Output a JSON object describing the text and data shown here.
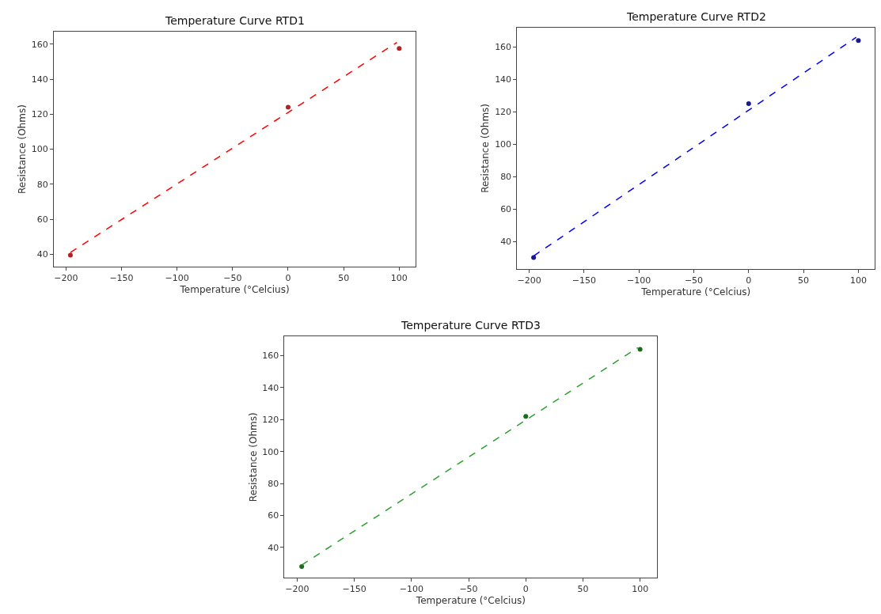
{
  "chart_data": [
    {
      "type": "scatter",
      "title": "Temperature Curve RTD1",
      "xlabel": "Temperature (°Celcius)",
      "ylabel": "Resistance (Ohms)",
      "xlim": [
        -211,
        115
      ],
      "xticks": [
        {
          "value": -200,
          "label": "−200"
        },
        {
          "value": -150,
          "label": "−150"
        },
        {
          "value": -100,
          "label": "−100"
        },
        {
          "value": -50,
          "label": "−50"
        },
        0,
        50,
        100
      ],
      "ylim": [
        33,
        167
      ],
      "yticks": [
        40,
        60,
        80,
        100,
        120,
        140,
        160
      ],
      "series": [
        {
          "marker": "circle",
          "color": "#b22222",
          "x": [
            -196,
            0,
            100
          ],
          "values": [
            39.5,
            124,
            157.5
          ]
        },
        {
          "type": "line",
          "line_style": "dashed",
          "marker": "none",
          "color": "#ff0000",
          "x": [
            -196,
            98
          ],
          "values": [
            41,
            161
          ]
        }
      ]
    },
    {
      "type": "scatter",
      "title": "Temperature Curve RTD2",
      "xlabel": "Temperature (°Celcius)",
      "ylabel": "Resistance (Ohms)",
      "xlim": [
        -211,
        115
      ],
      "xticks": [
        {
          "value": -200,
          "label": "−200"
        },
        {
          "value": -150,
          "label": "−150"
        },
        {
          "value": -100,
          "label": "−100"
        },
        {
          "value": -50,
          "label": "−50"
        },
        0,
        50,
        100
      ],
      "ylim": [
        23,
        172
      ],
      "yticks": [
        40,
        60,
        80,
        100,
        120,
        140,
        160
      ],
      "series": [
        {
          "marker": "circle",
          "color": "#1a1a8b",
          "x": [
            -196,
            0,
            100
          ],
          "values": [
            30,
            125,
            164
          ]
        },
        {
          "type": "line",
          "line_style": "dashed",
          "marker": "none",
          "color": "#0000ff",
          "x": [
            -196,
            98
          ],
          "values": [
            31,
            166
          ]
        }
      ]
    },
    {
      "type": "scatter",
      "title": "Temperature Curve RTD3",
      "xlabel": "Temperature (°Celcius)",
      "ylabel": "Resistance (Ohms)",
      "xlim": [
        -211,
        115
      ],
      "xticks": [
        {
          "value": -200,
          "label": "−200"
        },
        {
          "value": -150,
          "label": "−150"
        },
        {
          "value": -100,
          "label": "−100"
        },
        {
          "value": -50,
          "label": "−50"
        },
        0,
        50,
        100
      ],
      "ylim": [
        21,
        172
      ],
      "yticks": [
        40,
        60,
        80,
        100,
        120,
        140,
        160
      ],
      "series": [
        {
          "marker": "circle",
          "color": "#1a6b1a",
          "x": [
            -196,
            0,
            100
          ],
          "values": [
            28,
            122,
            164
          ]
        },
        {
          "type": "line",
          "line_style": "dashed",
          "marker": "none",
          "color": "#2ca02c",
          "x": [
            -196,
            98
          ],
          "values": [
            29,
            165
          ]
        }
      ]
    }
  ]
}
